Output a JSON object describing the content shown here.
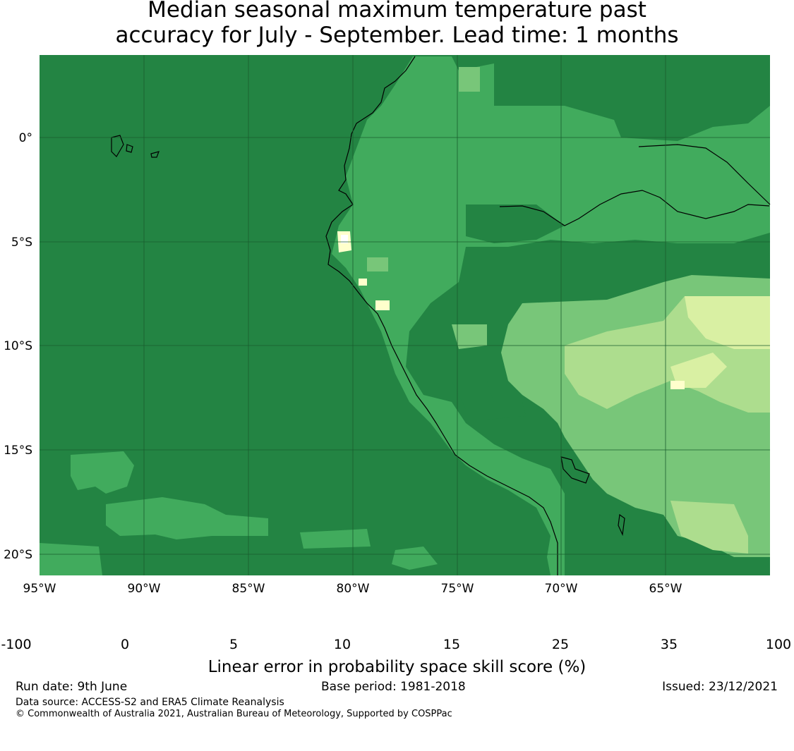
{
  "title": {
    "line1": "Median seasonal maximum temperature past",
    "line2": "accuracy for July - September. Lead time: 1 months"
  },
  "map": {
    "lon_ticks": [
      "95°W",
      "90°W",
      "85°W",
      "80°W",
      "75°W",
      "70°W",
      "65°W"
    ],
    "lat_ticks": [
      "0°",
      "5°S",
      "10°S",
      "15°S",
      "20°S"
    ],
    "ocean_color": "#238443",
    "gridline_color": "#1a5c2e"
  },
  "colorbar": {
    "ticks": [
      "-100",
      "0",
      "5",
      "10",
      "15",
      "25",
      "35",
      "100"
    ],
    "colors": [
      "#ffffff",
      "#ffffcc",
      "#d9f0a3",
      "#addd8e",
      "#78c679",
      "#41ab5d",
      "#238443"
    ],
    "label": "Linear error in probability space skill score (%)"
  },
  "footer": {
    "run_date": "Run date: 9th June",
    "base_period": "Base period: 1981-2018",
    "issued": "Issued: 23/12/2021",
    "data_source": "Data source: ACCESS-S2 and ERA5 Climate Reanalysis",
    "copyright": "© Commonwealth of Australia 2021, Australian Bureau of Meteorology, Supported by COSPPac"
  }
}
